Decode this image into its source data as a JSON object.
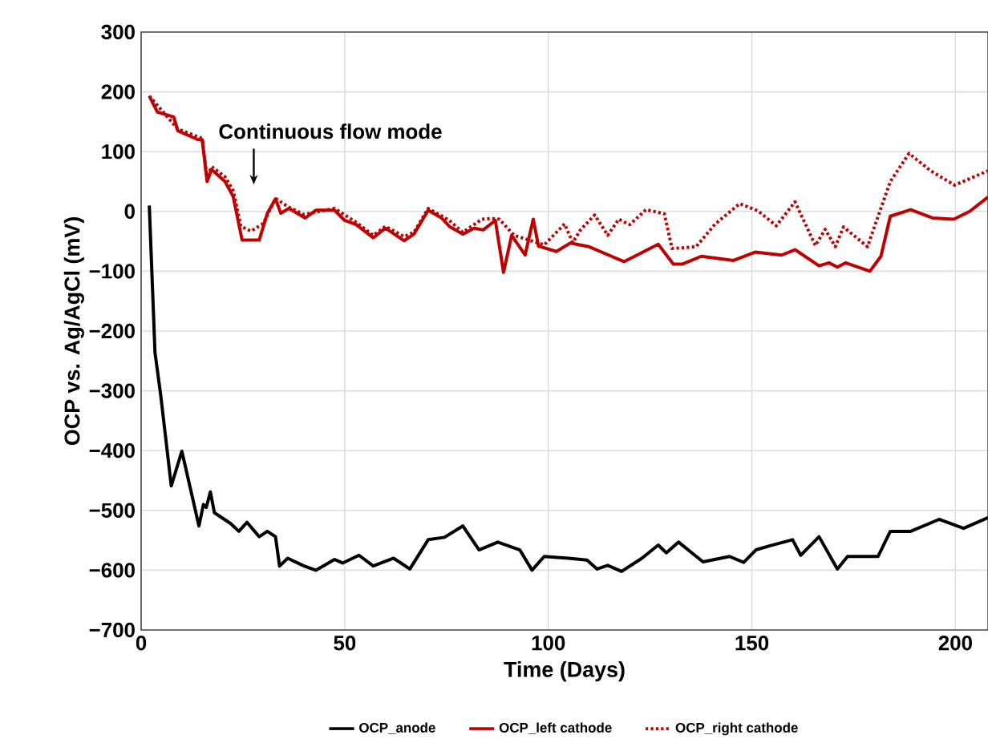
{
  "chart_data": {
    "type": "line",
    "xlabel": "Time (Days)",
    "ylabel": "OCP vs. Ag/AgCl (mV)",
    "xlim": [
      0,
      208
    ],
    "xticks": [
      0,
      50,
      100,
      150,
      200
    ],
    "ylim": [
      -700,
      300
    ],
    "yticks": [
      {
        "value": -700,
        "label": "−700"
      },
      {
        "value": -600,
        "label": "−600"
      },
      {
        "value": -500,
        "label": "−500"
      },
      {
        "value": -400,
        "label": "−400"
      },
      {
        "value": -300,
        "label": "−300"
      },
      {
        "value": -200,
        "label": "−200"
      },
      {
        "value": -100,
        "label": "−100"
      },
      0,
      100,
      200,
      300
    ],
    "grid": true,
    "legend": "bottom",
    "annotations": [
      "Continuous flow mode"
    ],
    "series": [
      {
        "name": "OCP_anode",
        "color": "#000000",
        "line_style": "solid",
        "x": [
          2,
          3.4,
          4.8,
          7.4,
          10,
          14.2,
          15.3,
          16,
          17,
          18,
          22,
          24,
          26,
          29,
          31,
          33,
          34,
          36,
          40,
          42.9,
          47.5,
          49.5,
          53.5,
          57,
          62,
          66,
          70.5,
          74.5,
          79,
          83,
          87.6,
          93,
          96,
          99,
          105,
          109.5,
          112,
          114.6,
          118,
          123,
          127,
          129,
          132,
          138,
          144.5,
          148,
          151,
          155,
          160,
          162,
          166.5,
          171,
          173.5,
          181,
          184,
          189,
          196,
          202,
          208
        ],
        "values": [
          10,
          -236,
          -307,
          -459,
          -401,
          -526,
          -490,
          -495,
          -469,
          -504,
          -522,
          -535,
          -520,
          -544,
          -535,
          -544,
          -593,
          -580,
          -593,
          -600,
          -582,
          -588,
          -575,
          -593,
          -580,
          -598,
          -549,
          -545,
          -526,
          -566,
          -553,
          -566,
          -600,
          -577,
          -580,
          -583,
          -598,
          -592,
          -602,
          -580,
          -558,
          -571,
          -553,
          -586,
          -577,
          -587,
          -566,
          -558,
          -549,
          -575,
          -544,
          -598,
          -577,
          -577,
          -535,
          -535,
          -515,
          -530,
          -512
        ]
      },
      {
        "name": "OCP_left cathode",
        "color": "#c00000",
        "line_style": "solid",
        "x": [
          2,
          4,
          8,
          9,
          14,
          15,
          16.2,
          17.3,
          20.6,
          22.6,
          24.8,
          29,
          31,
          33,
          34.3,
          36.3,
          40.3,
          42.9,
          47.5,
          50,
          52.8,
          57,
          60,
          64.6,
          67,
          70.5,
          73.8,
          75.7,
          79,
          81.8,
          84,
          87,
          89,
          91,
          94.3,
          96.3,
          97.6,
          102,
          105.4,
          110,
          118.6,
          127,
          130.7,
          133,
          137.6,
          145.5,
          150.8,
          157.3,
          160.6,
          166.5,
          169,
          171,
          173,
          179,
          181.7,
          184,
          189,
          194.4,
          199.6,
          203.5,
          208
        ],
        "values": [
          193,
          166,
          158,
          135,
          120,
          120,
          50,
          70,
          50,
          25,
          -48,
          -48,
          -3,
          21,
          -3,
          5,
          -11,
          2,
          2,
          -15,
          -22,
          -44,
          -28,
          -49,
          -38,
          2,
          -11,
          -25,
          -38,
          -28,
          -31,
          -15,
          -102,
          -40,
          -73,
          -13,
          -58,
          -67,
          -53,
          -59,
          -84,
          -55,
          -88,
          -88,
          -75,
          -82,
          -68,
          -73,
          -64,
          -91,
          -86,
          -93,
          -86,
          -100,
          -75,
          -8,
          3,
          -11,
          -13,
          0,
          24
        ]
      },
      {
        "name": "OCP_right cathode",
        "color": "#c00000",
        "line_style": "dotted",
        "x": [
          2,
          9,
          15,
          16.2,
          17.3,
          20.6,
          22.6,
          24.5,
          27,
          30,
          33,
          36,
          40,
          47.5,
          52.8,
          57,
          60,
          64.6,
          67,
          70.5,
          75.7,
          79,
          83.7,
          86,
          88,
          91.6,
          99,
          104,
          106,
          108,
          111.4,
          114.6,
          117.3,
          120,
          124,
          128.5,
          130.4,
          136.3,
          141,
          147,
          151.5,
          156,
          160.6,
          165.6,
          168,
          170.5,
          172.5,
          178.4,
          184,
          188.6,
          193.9,
          199.8,
          208
        ],
        "values": [
          193,
          138,
          122,
          55,
          75,
          58,
          35,
          -25,
          -33,
          -20,
          22,
          8,
          -5,
          5,
          -18,
          -40,
          -25,
          -42,
          -35,
          5,
          -15,
          -35,
          -13,
          -12,
          -13,
          -40,
          -56,
          -21,
          -52,
          -30,
          -6,
          -40,
          -13,
          -22,
          3,
          -4,
          -62,
          -59,
          -21,
          13,
          1,
          -24,
          16,
          -57,
          -30,
          -59,
          -26,
          -59,
          50,
          97,
          68,
          44,
          68
        ]
      }
    ]
  }
}
